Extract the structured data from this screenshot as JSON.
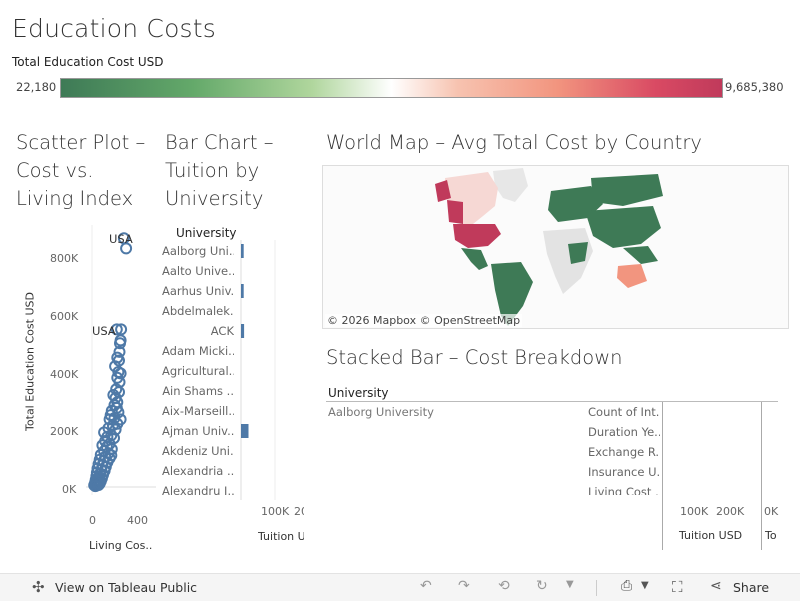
{
  "dashboard": {
    "title": "Education Costs",
    "legend": {
      "title": "Total Education Cost USD",
      "min": "22,180",
      "max": "9,685,380"
    }
  },
  "scatter": {
    "title_lines": [
      "Scatter Plot –",
      "Cost vs.",
      "Living Index"
    ],
    "y_axis_title": "Total Education Cost USD",
    "x_axis_title": "Living Cos..",
    "y_ticks": [
      "800K",
      "600K",
      "400K",
      "200K",
      "0K"
    ],
    "x_ticks": [
      "0",
      "400"
    ],
    "annotations": [
      "USA",
      "USA"
    ]
  },
  "bar": {
    "title_lines": [
      "Bar Chart –",
      "Tuition by",
      "University"
    ],
    "header": "University",
    "rows": [
      "Aalborg Uni..",
      "Aalto Unive..",
      "Aarhus Univ..",
      "Abdelmalek..",
      "ACK",
      "Adam Micki..",
      "Agricultural..",
      "Ain Shams ..",
      "Aix-Marseill..",
      "Ajman Univ..",
      "Akdeniz Uni..",
      "Alexandria ..",
      "Alexandru I.."
    ],
    "x_ticks": [
      "100K",
      "20"
    ],
    "x_axis_title": "Tuition U"
  },
  "map": {
    "title": "World Map – Avg Total Cost by Country",
    "attribution": "© 2026 Mapbox  © OpenStreetMap"
  },
  "stacked": {
    "title": "Stacked Bar – Cost Breakdown",
    "header": "University",
    "university": "Aalborg University",
    "measures": [
      "Count of Int..",
      "Duration Ye..",
      "Exchange R..",
      "Insurance U..",
      "Living Cost .."
    ],
    "x_ticks": [
      "100K",
      "200K",
      "0K"
    ],
    "axis_titles": [
      "Tuition USD",
      "To"
    ]
  },
  "footer": {
    "view_label": "View on Tableau Public",
    "share_label": "Share"
  },
  "chart_data": {
    "type": "scatter",
    "title": "Scatter Plot – Cost vs. Living Index",
    "xlabel": "Living Cos..",
    "ylabel": "Total Education Cost USD",
    "xlim": [
      0,
      560
    ],
    "ylim": [
      0,
      850000
    ],
    "points": [
      [
        290,
        865000
      ],
      [
        310,
        830000
      ],
      [
        225,
        548000
      ],
      [
        265,
        548000
      ],
      [
        260,
        510000
      ],
      [
        255,
        500000
      ],
      [
        250,
        470000
      ],
      [
        230,
        450000
      ],
      [
        245,
        440000
      ],
      [
        210,
        420000
      ],
      [
        240,
        400000
      ],
      [
        260,
        395000
      ],
      [
        230,
        380000
      ],
      [
        250,
        365000
      ],
      [
        220,
        340000
      ],
      [
        245,
        330000
      ],
      [
        195,
        320000
      ],
      [
        215,
        310000
      ],
      [
        230,
        295000
      ],
      [
        205,
        285000
      ],
      [
        225,
        275000
      ],
      [
        180,
        265000
      ],
      [
        240,
        260000
      ],
      [
        170,
        250000
      ],
      [
        205,
        240000
      ],
      [
        160,
        235000
      ],
      [
        230,
        220000
      ],
      [
        190,
        215000
      ],
      [
        150,
        205000
      ],
      [
        215,
        200000
      ],
      [
        110,
        190000
      ],
      [
        175,
        180000
      ],
      [
        140,
        175000
      ],
      [
        200,
        170000
      ],
      [
        120,
        160000
      ],
      [
        160,
        150000
      ],
      [
        95,
        145000
      ],
      [
        135,
        140000
      ],
      [
        180,
        132000
      ],
      [
        110,
        125000
      ],
      [
        150,
        118000
      ],
      [
        80,
        112000
      ],
      [
        120,
        105000
      ],
      [
        160,
        100000
      ],
      [
        70,
        95000
      ],
      [
        105,
        90000
      ],
      [
        140,
        86000
      ],
      [
        60,
        80000
      ],
      [
        95,
        75000
      ],
      [
        125,
        70000
      ],
      [
        50,
        64000
      ],
      [
        85,
        60000
      ],
      [
        115,
        56000
      ],
      [
        45,
        50000
      ],
      [
        75,
        46000
      ],
      [
        100,
        42000
      ],
      [
        40,
        38000
      ],
      [
        65,
        34000
      ],
      [
        90,
        30000
      ],
      [
        35,
        26000
      ],
      [
        55,
        22000
      ],
      [
        80,
        20000
      ],
      [
        30,
        17000
      ],
      [
        50,
        14000
      ],
      [
        70,
        12000
      ],
      [
        25,
        10000
      ],
      [
        45,
        8000
      ],
      [
        60,
        7000
      ],
      [
        20,
        6000
      ],
      [
        38,
        5000
      ],
      [
        30,
        3000
      ],
      [
        260,
        235000
      ],
      [
        175,
        110000
      ]
    ],
    "bar_values": [
      {
        "label": "Aalborg Uni..",
        "value": 8000
      },
      {
        "label": "Aarhus Univ..",
        "value": 8000
      },
      {
        "label": "ACK",
        "value": 9000
      },
      {
        "label": "Ajman Univ..",
        "value": 22000
      }
    ]
  }
}
